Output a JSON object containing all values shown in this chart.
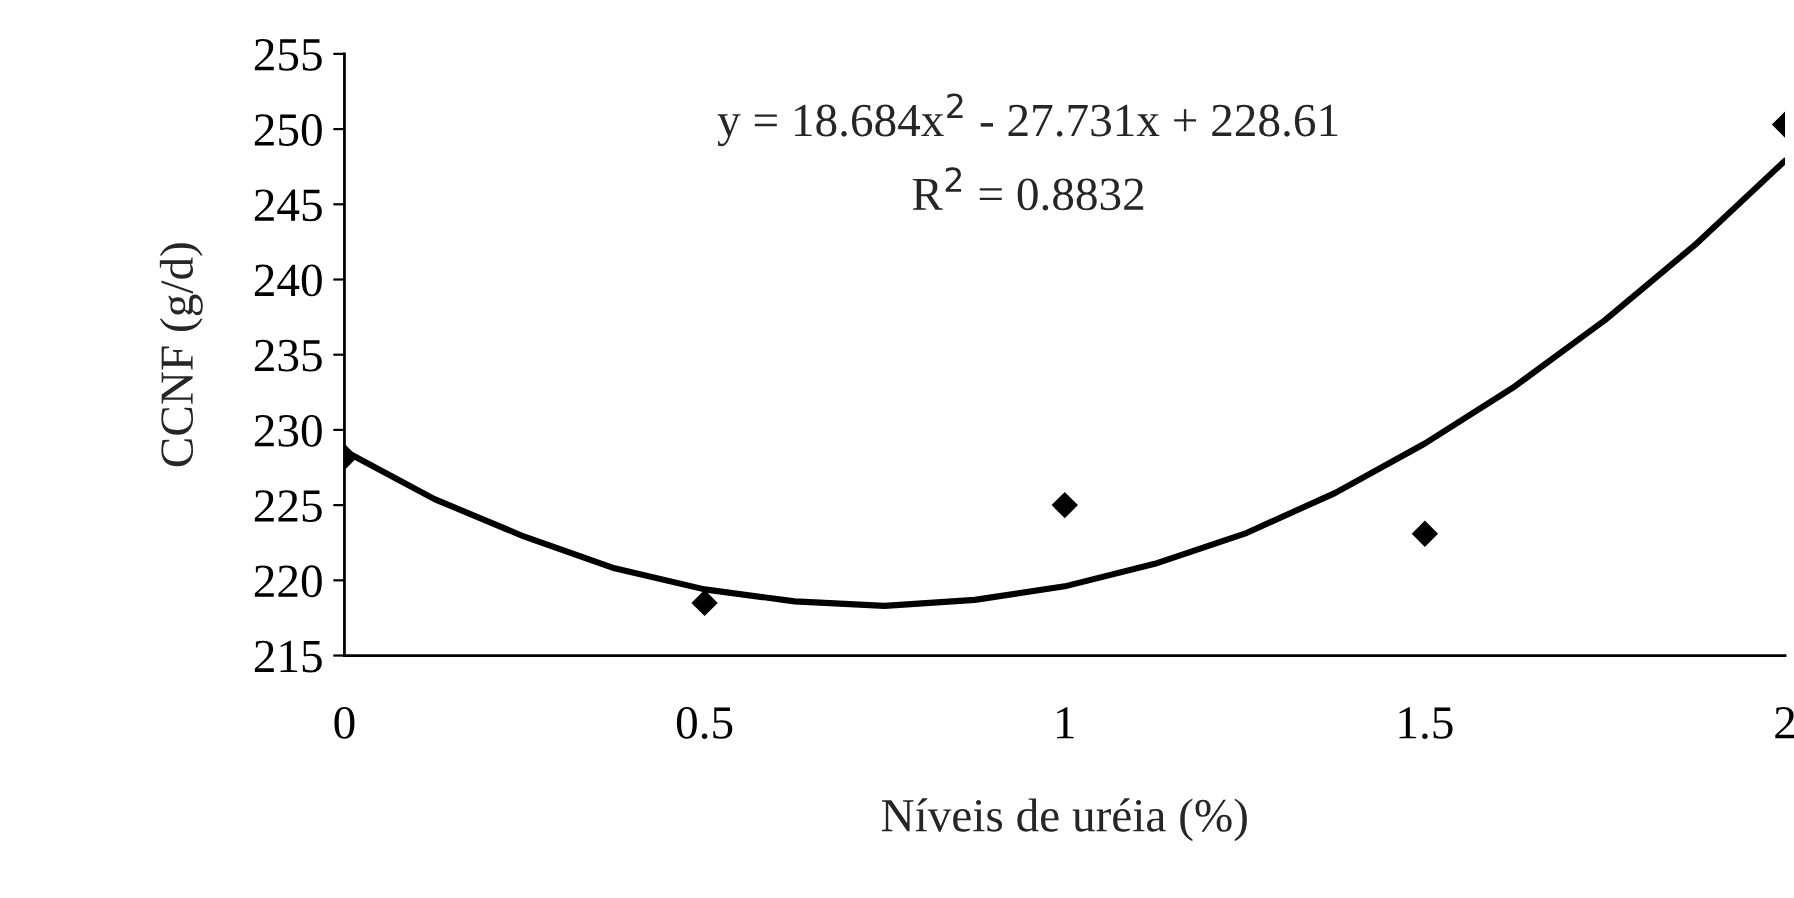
{
  "chart_data": {
    "type": "scatter",
    "xlabel": "Níveis de uréia (%)",
    "ylabel": "CCNF (g/d)",
    "x": [
      0,
      0.5,
      1,
      1.5,
      2
    ],
    "series": [
      {
        "color": "#000000",
        "marker": "diamond",
        "values": [
          228.2,
          218.5,
          225.0,
          223.1,
          250.3
        ]
      },
      {
        "type": "line",
        "color": "#000000",
        "marker": "none",
        "line_style": "solid",
        "x": [
          0,
          0.125,
          0.25,
          0.375,
          0.5,
          0.625,
          0.75,
          0.875,
          1.0,
          1.125,
          1.25,
          1.375,
          1.5,
          1.625,
          1.75,
          1.875,
          2.0
        ],
        "values": [
          228.6,
          225.4,
          222.9,
          220.8,
          219.4,
          218.6,
          218.3,
          218.7,
          219.6,
          221.1,
          223.1,
          225.8,
          229.1,
          232.9,
          237.3,
          242.3,
          247.9
        ]
      }
    ],
    "xlim": [
      0,
      2
    ],
    "xticks": [
      0,
      0.5,
      1,
      1.5,
      2
    ],
    "ylim": [
      215,
      255
    ],
    "yticks": [
      215,
      220,
      225,
      230,
      235,
      240,
      245,
      250,
      255
    ],
    "grid": false,
    "legend": false,
    "annotations": [
      "y = 18.684x$^{2}$ - 27.731x + 228.61",
      "R$^{2}$ = 0.8832"
    ]
  }
}
